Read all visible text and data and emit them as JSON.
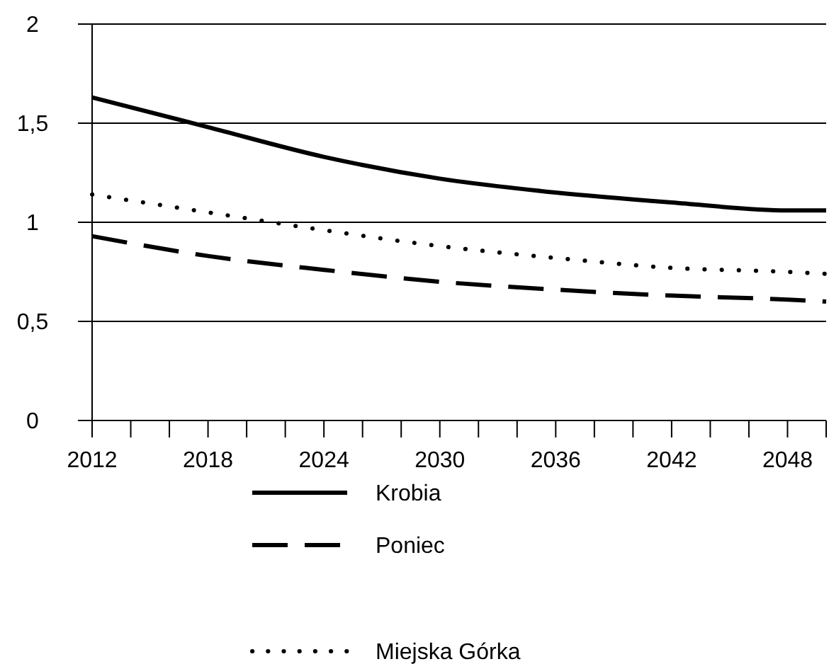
{
  "chart_data": {
    "type": "line",
    "x": [
      2012,
      2018,
      2024,
      2030,
      2036,
      2042,
      2048,
      2050
    ],
    "series": [
      {
        "name": "Krobia",
        "color": "#000000",
        "line_style": "solid",
        "values": [
          1.63,
          1.48,
          1.33,
          1.22,
          1.15,
          1.1,
          1.06,
          1.06
        ]
      },
      {
        "name": "Poniec",
        "color": "#000000",
        "line_style": "dashed",
        "values": [
          0.93,
          0.83,
          0.76,
          0.7,
          0.66,
          0.63,
          0.61,
          0.6
        ]
      },
      {
        "name": "Miejska Górka",
        "color": "#000000",
        "line_style": "dotted",
        "values": [
          1.14,
          1.05,
          0.96,
          0.88,
          0.82,
          0.77,
          0.75,
          0.74
        ]
      }
    ],
    "xlim": [
      2012,
      2050
    ],
    "xticks": [
      2012,
      {
        "value": 2014,
        "label": null
      },
      {
        "value": 2016,
        "label": null
      },
      2018,
      {
        "value": 2020,
        "label": null
      },
      {
        "value": 2022,
        "label": null
      },
      2024,
      {
        "value": 2026,
        "label": null
      },
      {
        "value": 2028,
        "label": null
      },
      2030,
      {
        "value": 2032,
        "label": null
      },
      {
        "value": 2034,
        "label": null
      },
      2036,
      {
        "value": 2038,
        "label": null
      },
      {
        "value": 2040,
        "label": null
      },
      2042,
      {
        "value": 2044,
        "label": null
      },
      {
        "value": 2046,
        "label": null
      },
      2048,
      {
        "value": 2050,
        "label": null
      }
    ],
    "ylim": [
      0,
      2
    ],
    "yticks": [
      {
        "value": 0,
        "label": "0"
      },
      {
        "value": 0.5,
        "label": "0,5"
      },
      {
        "value": 1,
        "label": "1"
      },
      {
        "value": 1.5,
        "label": "1,5"
      },
      {
        "value": 2,
        "label": "2"
      }
    ],
    "grid": "y",
    "legend": "bottom",
    "marker": "none"
  }
}
